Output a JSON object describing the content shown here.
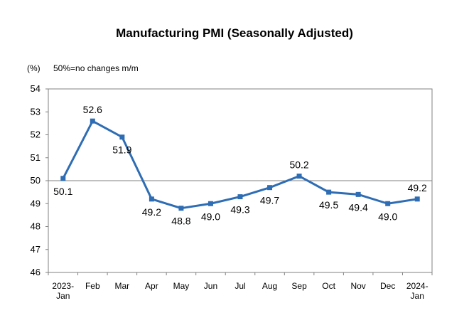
{
  "chart_data": {
    "type": "line",
    "title": "Manufacturing PMI (Seasonally Adjusted)",
    "unit_label": "(%)",
    "note": "50%=no changes m/m",
    "categories": [
      "2023-Jan",
      "Feb",
      "Mar",
      "Apr",
      "May",
      "Jun",
      "Jul",
      "Aug",
      "Sep",
      "Oct",
      "Nov",
      "Dec",
      "2024-Jan"
    ],
    "category_lines": [
      [
        "2023-",
        "Jan"
      ],
      [
        "Feb"
      ],
      [
        "Mar"
      ],
      [
        "Apr"
      ],
      [
        "May"
      ],
      [
        "Jun"
      ],
      [
        "Jul"
      ],
      [
        "Aug"
      ],
      [
        "Sep"
      ],
      [
        "Oct"
      ],
      [
        "Nov"
      ],
      [
        "Dec"
      ],
      [
        "2024-",
        "Jan"
      ]
    ],
    "series": [
      {
        "values": [
          50.1,
          52.6,
          51.9,
          49.2,
          48.8,
          49.0,
          49.3,
          49.7,
          50.2,
          49.5,
          49.4,
          49.0,
          49.2
        ]
      }
    ],
    "data_labels": [
      "50.1",
      "52.6",
      "51.9",
      "49.2",
      "48.8",
      "49.0",
      "49.3",
      "49.7",
      "50.2",
      "49.5",
      "49.4",
      "49.0",
      "49.2"
    ],
    "ylim": [
      46,
      54
    ],
    "yticks": [
      46,
      47,
      48,
      49,
      50,
      51,
      52,
      53,
      54
    ],
    "reference_line": 50,
    "grid": false,
    "legend": "none",
    "colors": {
      "line": "#2e6db4",
      "marker": "#2e6db4",
      "axis": "#808080",
      "reference": "#808080"
    }
  }
}
